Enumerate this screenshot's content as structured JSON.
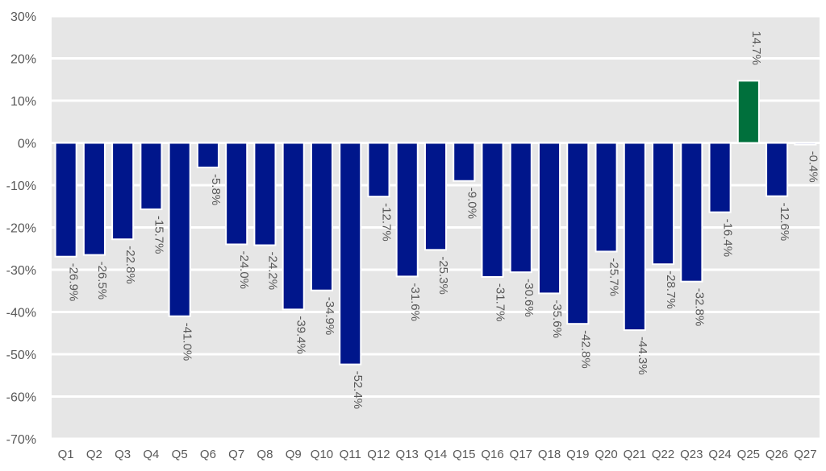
{
  "chart_data": {
    "type": "bar",
    "categories": [
      "Q1",
      "Q2",
      "Q3",
      "Q4",
      "Q5",
      "Q6",
      "Q7",
      "Q8",
      "Q9",
      "Q10",
      "Q11",
      "Q12",
      "Q13",
      "Q14",
      "Q15",
      "Q16",
      "Q17",
      "Q18",
      "Q19",
      "Q20",
      "Q21",
      "Q22",
      "Q23",
      "Q24",
      "Q25",
      "Q26",
      "Q27"
    ],
    "values": [
      -26.9,
      -26.5,
      -22.8,
      -15.7,
      -41.0,
      -5.8,
      -24.0,
      -24.2,
      -39.4,
      -34.9,
      -52.4,
      -12.7,
      -31.6,
      -25.3,
      -9.0,
      -31.7,
      -30.6,
      -35.6,
      -42.8,
      -25.7,
      -44.3,
      -28.7,
      -32.8,
      -16.4,
      14.7,
      -12.6,
      -0.4
    ],
    "data_labels": [
      "-26.9%",
      "-26.5%",
      "-22.8%",
      "-15.7%",
      "-41.0%",
      "-5.8%",
      "-24.0%",
      "-24.2%",
      "-39.4%",
      "-34.9%",
      "-52.4%",
      "-12.7%",
      "-31.6%",
      "-25.3%",
      "-9.0%",
      "-31.7%",
      "-30.6%",
      "-35.6%",
      "-42.8%",
      "-25.7%",
      "-44.3%",
      "-28.7%",
      "-32.8%",
      "-16.4%",
      "14.7%",
      "-12.6%",
      "-0.4%"
    ],
    "title": "",
    "xlabel": "",
    "ylabel": "",
    "ylim": [
      -70,
      30
    ],
    "yticks": [
      30,
      20,
      10,
      0,
      -10,
      -20,
      -30,
      -40,
      -50,
      -60,
      -70
    ],
    "ytick_labels": [
      "30%",
      "20%",
      "10%",
      "0%",
      "-10%",
      "-20%",
      "-30%",
      "-40%",
      "-50%",
      "-60%",
      "-70%"
    ],
    "grid": true,
    "legend": "none",
    "colors": {
      "negative": "#00168B",
      "positive": "#00703C",
      "plot_background": "#E6E6E6",
      "gridline": "#FFFFFF",
      "bar_outline": "#FFFFFF",
      "text": "#595959"
    }
  }
}
